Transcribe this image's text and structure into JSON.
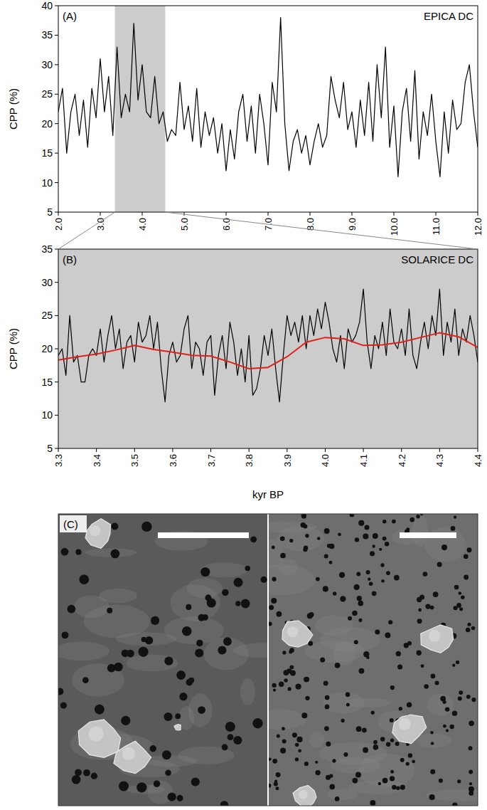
{
  "chart_data": [
    {
      "type": "line",
      "title": "EPICA DC",
      "panel": "(A)",
      "y_label": "CPP (%)",
      "xlim": [
        2.0,
        12.0
      ],
      "ylim": [
        5,
        40
      ],
      "xticks": [
        {
          "value": 2,
          "label": "2.0"
        },
        {
          "value": 3,
          "label": "3.0"
        },
        {
          "value": 4,
          "label": "4.0"
        },
        {
          "value": 5,
          "label": "5.0"
        },
        {
          "value": 6,
          "label": "6.0"
        },
        {
          "value": 7,
          "label": "7.0"
        },
        {
          "value": 8,
          "label": "8.0"
        },
        {
          "value": 9,
          "label": "9.0"
        },
        {
          "value": 10,
          "label": "10.0"
        },
        {
          "value": 11,
          "label": "11.0"
        },
        {
          "value": 12,
          "label": "12.0"
        }
      ],
      "yticks": [
        5,
        10,
        15,
        20,
        25,
        30,
        35,
        40
      ],
      "highlight": [
        3.35,
        4.55
      ],
      "series": [
        {
          "color": "#000000",
          "x": [
            2.0,
            2.1,
            2.2,
            2.3,
            2.4,
            2.5,
            2.6,
            2.7,
            2.8,
            2.9,
            3.0,
            3.1,
            3.2,
            3.3,
            3.4,
            3.5,
            3.6,
            3.7,
            3.8,
            3.9,
            4.0,
            4.1,
            4.2,
            4.3,
            4.4,
            4.5,
            4.6,
            4.7,
            4.8,
            4.9,
            5.0,
            5.1,
            5.2,
            5.3,
            5.4,
            5.5,
            5.6,
            5.7,
            5.8,
            5.9,
            6.0,
            6.1,
            6.2,
            6.3,
            6.4,
            6.5,
            6.6,
            6.7,
            6.8,
            6.9,
            7.0,
            7.1,
            7.2,
            7.3,
            7.4,
            7.5,
            7.6,
            7.7,
            7.8,
            7.9,
            8.0,
            8.1,
            8.2,
            8.3,
            8.4,
            8.5,
            8.6,
            8.7,
            8.8,
            8.9,
            9.0,
            9.1,
            9.2,
            9.3,
            9.4,
            9.5,
            9.6,
            9.7,
            9.8,
            9.9,
            10.0,
            10.1,
            10.2,
            10.3,
            10.4,
            10.5,
            10.6,
            10.7,
            10.8,
            10.9,
            11.0,
            11.1,
            11.2,
            11.3,
            11.4,
            11.5,
            11.6,
            11.7,
            11.8,
            11.9,
            12.0
          ],
          "values": [
            22,
            26,
            15,
            22,
            25,
            18,
            24,
            16,
            26,
            21,
            31,
            22,
            28,
            18,
            33,
            21,
            25,
            22,
            37,
            24,
            30,
            22,
            21,
            28,
            20,
            22,
            17,
            19,
            18,
            27,
            19,
            23,
            17,
            26,
            16,
            22,
            18,
            21,
            15,
            20,
            12,
            19,
            14,
            22,
            25,
            17,
            23,
            15,
            25,
            20,
            13,
            27,
            22,
            38,
            20,
            12,
            17,
            19,
            15,
            18,
            13,
            17,
            20,
            16,
            18,
            28,
            24,
            21,
            27,
            19,
            22,
            16,
            24,
            18,
            27,
            17,
            30,
            21,
            33,
            16,
            23,
            11,
            22,
            26,
            17,
            29,
            14,
            22,
            18,
            25,
            17,
            11,
            22,
            15,
            24,
            19,
            20,
            27,
            30,
            22,
            16
          ]
        }
      ]
    },
    {
      "type": "line",
      "title": "SOLARICE DC",
      "panel": "(B)",
      "y_label": "CPP (%)",
      "x_label": "kyr BP",
      "xlim": [
        3.3,
        4.4
      ],
      "ylim": [
        5,
        35
      ],
      "xticks": [
        3.3,
        3.4,
        3.5,
        3.6,
        3.7,
        3.8,
        3.9,
        {
          "value": 4,
          "label": "4.0"
        },
        4.1,
        4.2,
        4.3,
        4.4
      ],
      "yticks": [
        5,
        10,
        15,
        20,
        25,
        30,
        35
      ],
      "series": [
        {
          "color": "#000000",
          "x": [
            3.3,
            3.31,
            3.32,
            3.33,
            3.34,
            3.35,
            3.36,
            3.37,
            3.38,
            3.39,
            3.4,
            3.41,
            3.42,
            3.43,
            3.44,
            3.45,
            3.46,
            3.47,
            3.48,
            3.49,
            3.5,
            3.51,
            3.52,
            3.53,
            3.54,
            3.55,
            3.56,
            3.57,
            3.58,
            3.59,
            3.6,
            3.61,
            3.62,
            3.63,
            3.64,
            3.65,
            3.66,
            3.67,
            3.68,
            3.69,
            3.7,
            3.71,
            3.72,
            3.73,
            3.74,
            3.75,
            3.76,
            3.77,
            3.78,
            3.79,
            3.8,
            3.81,
            3.82,
            3.83,
            3.84,
            3.85,
            3.86,
            3.87,
            3.88,
            3.89,
            3.9,
            3.91,
            3.92,
            3.93,
            3.94,
            3.95,
            3.96,
            3.97,
            3.98,
            3.99,
            4.0,
            4.01,
            4.02,
            4.03,
            4.04,
            4.05,
            4.06,
            4.07,
            4.08,
            4.09,
            4.1,
            4.11,
            4.12,
            4.13,
            4.14,
            4.15,
            4.16,
            4.17,
            4.18,
            4.19,
            4.2,
            4.21,
            4.22,
            4.23,
            4.24,
            4.25,
            4.26,
            4.27,
            4.28,
            4.29,
            4.3,
            4.31,
            4.32,
            4.33,
            4.34,
            4.35,
            4.36,
            4.37,
            4.38,
            4.39,
            4.4
          ],
          "values": [
            19,
            20,
            16,
            25,
            18,
            19,
            15,
            15,
            19,
            20,
            19,
            23,
            18,
            22,
            25,
            20,
            23,
            17,
            21,
            22,
            18,
            24,
            21,
            22,
            25,
            20,
            24,
            17,
            12,
            19,
            21,
            18,
            19,
            23,
            25,
            17,
            21,
            20,
            16,
            21,
            22,
            13,
            19,
            22,
            17,
            24,
            21,
            16,
            20,
            15,
            22,
            13,
            14,
            17,
            22,
            19,
            23,
            17,
            12,
            19,
            25,
            22,
            24,
            21,
            25,
            20,
            25,
            22,
            26,
            23,
            27,
            24,
            20,
            18,
            22,
            17,
            23,
            21,
            22,
            24,
            29,
            21,
            17,
            22,
            20,
            24,
            19,
            26,
            21,
            20,
            23,
            19,
            26,
            19,
            17,
            21,
            24,
            20,
            25,
            22,
            29,
            19,
            24,
            21,
            26,
            19,
            23,
            21,
            25,
            22,
            18
          ]
        },
        {
          "color": "#e0201b",
          "x": [
            3.3,
            3.35,
            3.4,
            3.45,
            3.5,
            3.55,
            3.6,
            3.65,
            3.7,
            3.75,
            3.8,
            3.85,
            3.9,
            3.95,
            4.0,
            4.05,
            4.1,
            4.15,
            4.2,
            4.25,
            4.3,
            4.35,
            4.4
          ],
          "values": [
            18.3,
            18.8,
            19.2,
            19.8,
            20.5,
            19.9,
            19.5,
            19.0,
            18.9,
            18.0,
            17.0,
            17.2,
            18.8,
            21.0,
            21.7,
            21.5,
            20.5,
            20.6,
            21.0,
            21.7,
            22.4,
            21.8,
            20.2
          ]
        }
      ]
    }
  ],
  "image_panel": {
    "panel": "(C)"
  }
}
